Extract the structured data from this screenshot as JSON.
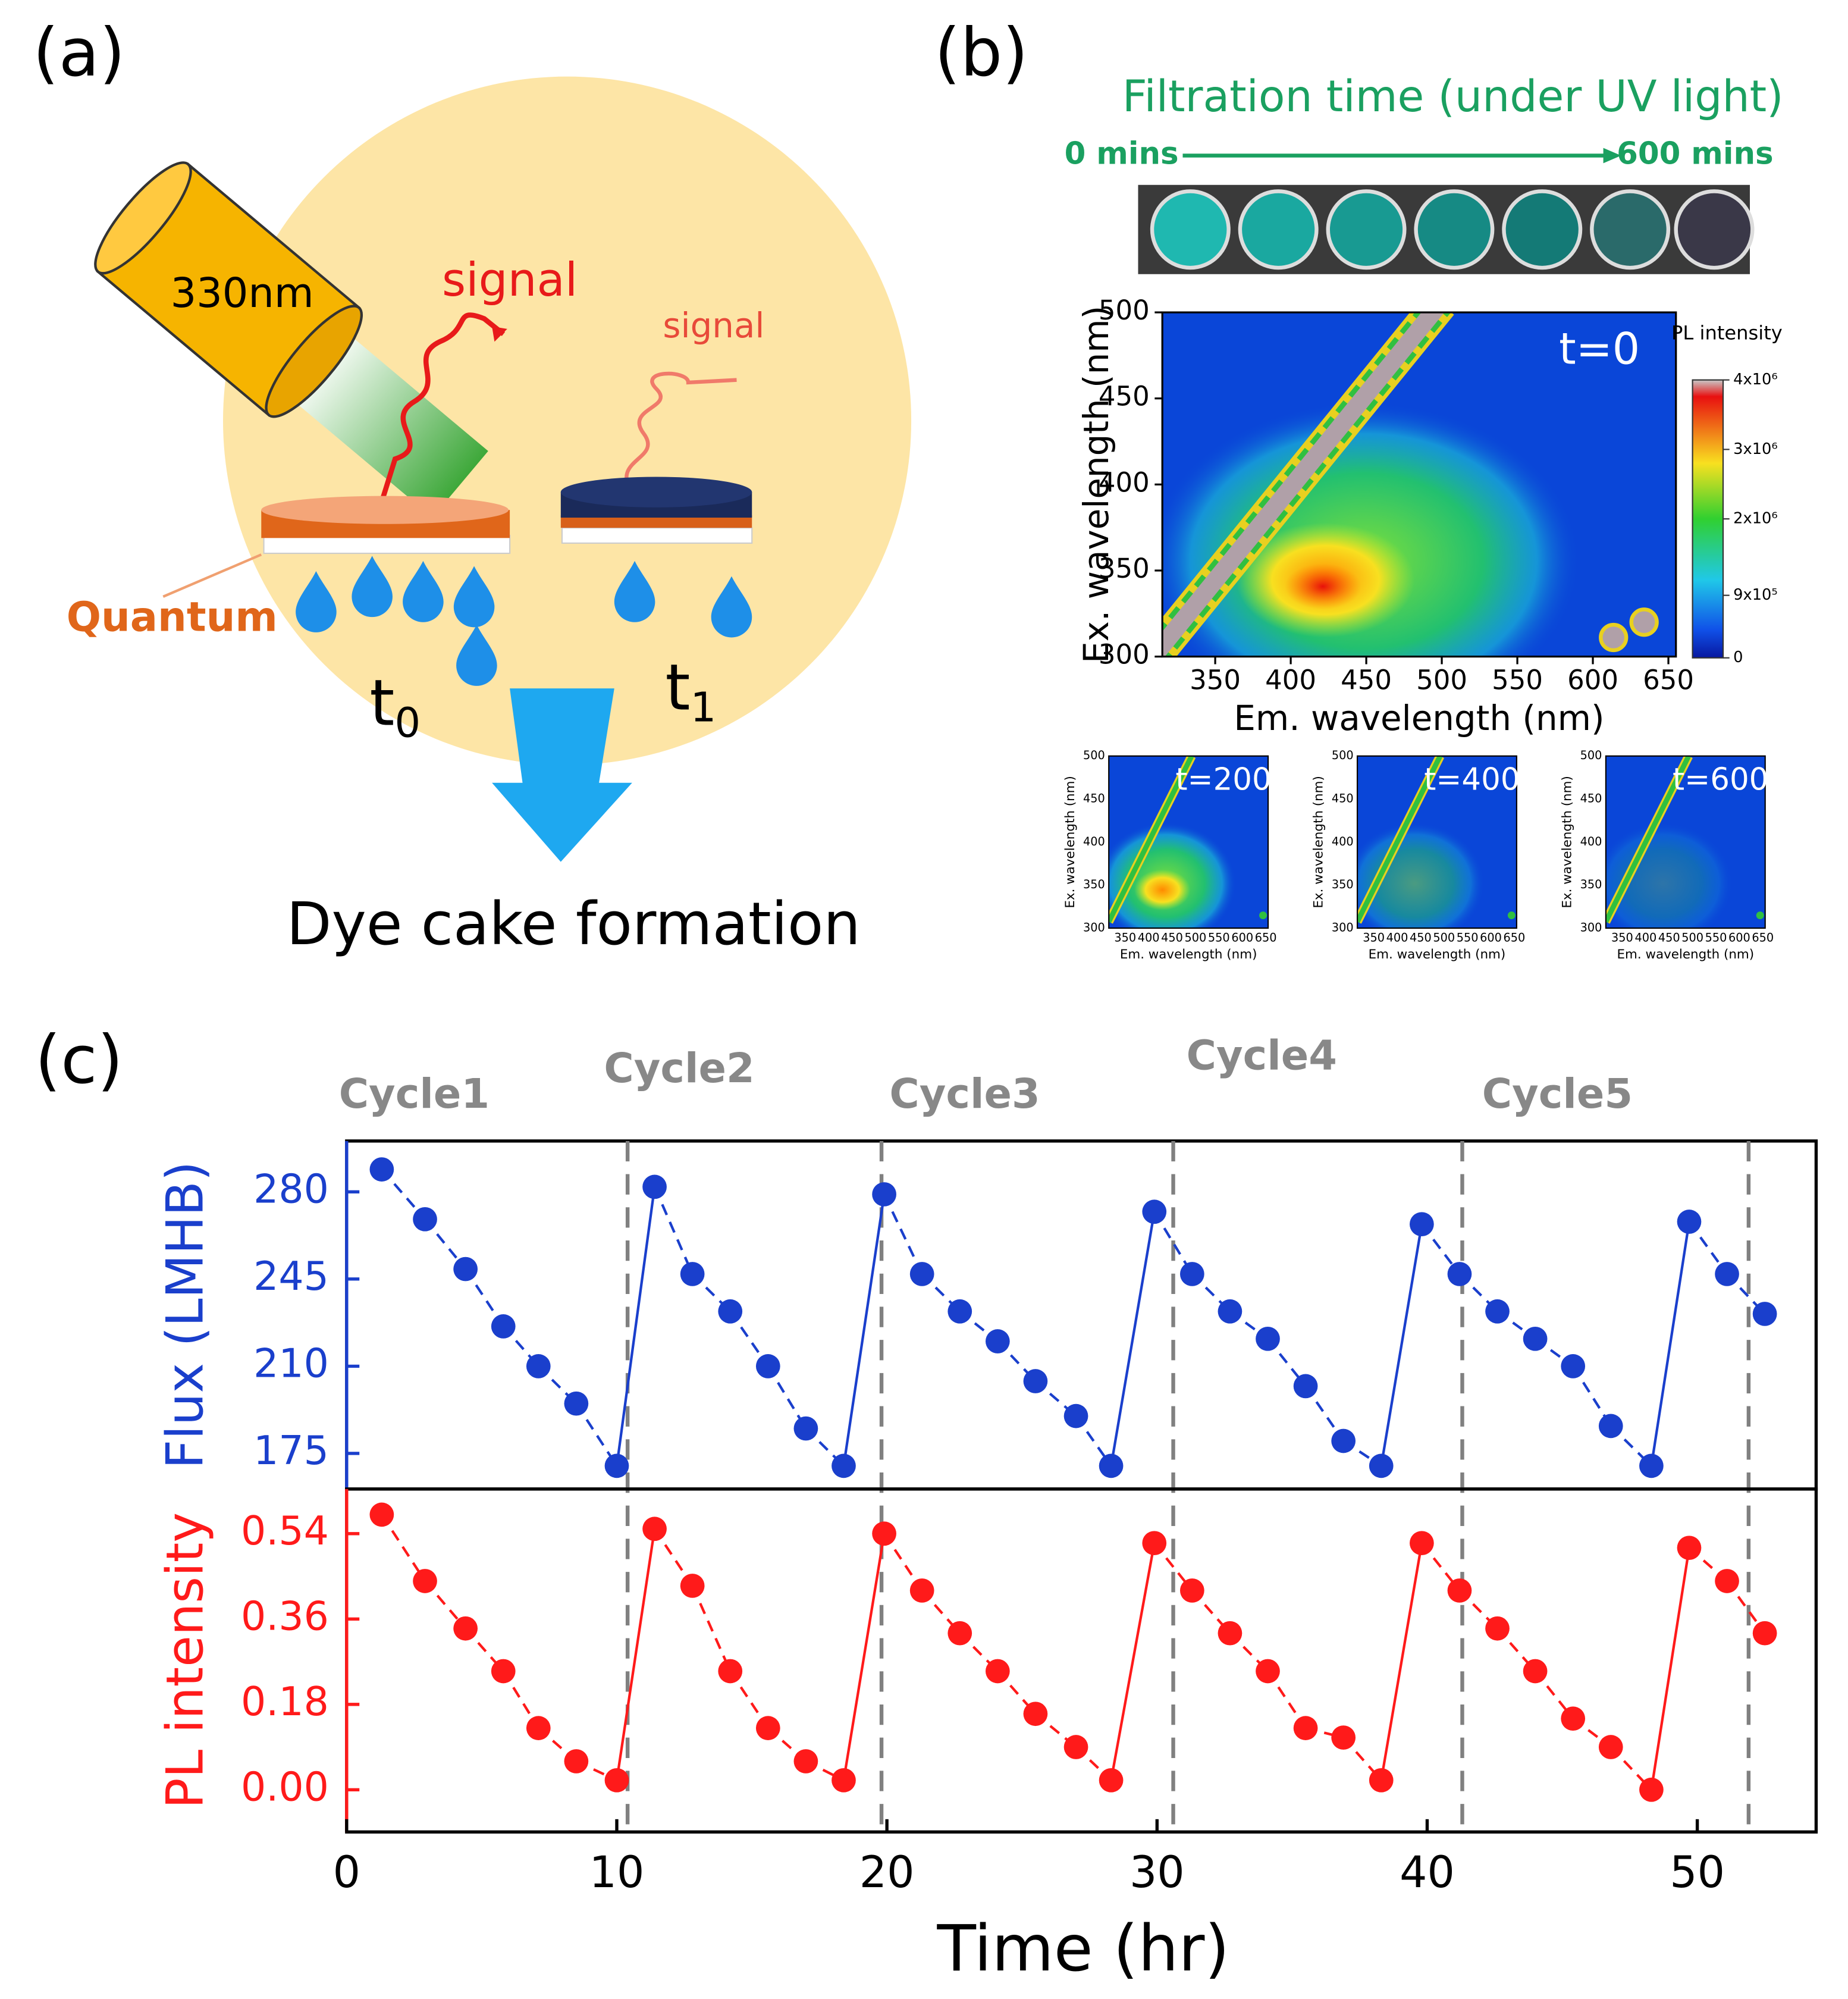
{
  "panel_a": {
    "label": "(a)",
    "laser": "330nm",
    "signal_strong": "signal",
    "signal_weak": "signal",
    "material": "Quantum",
    "t0": {
      "base": "t",
      "sub": "0"
    },
    "t1": {
      "base": "t",
      "sub": "1"
    },
    "caption": "Dye cake formation"
  },
  "panel_b": {
    "label": "(b)",
    "title": "Filtration time (under UV light)",
    "start": "0 mins",
    "end": "600 mins"
  },
  "panel_c": {
    "label": "(c)"
  },
  "chart_data": [
    {
      "type": "heatmap",
      "title": "t=0",
      "xlabel": "Em. wavelength (nm)",
      "ylabel": "Ex. wavelength (nm)",
      "xlim": [
        315,
        655
      ],
      "ylim": [
        300,
        500
      ],
      "xticks": [
        350,
        400,
        450,
        500,
        550,
        600,
        650
      ],
      "yticks": [
        300,
        350,
        400,
        450,
        500
      ],
      "colorbar": {
        "title": "PL intensity",
        "lim": [
          0,
          4000000
        ],
        "ticks": [
          0,
          {
            "value": 900000,
            "label": "9x10⁵"
          },
          {
            "value": 2000000,
            "label": "2x10⁶"
          },
          {
            "value": 3000000,
            "label": "3x10⁶"
          },
          {
            "value": 4000000,
            "label": "4x10⁶"
          }
        ]
      },
      "insets": [
        {
          "title": "t=200"
        },
        {
          "title": "t=400"
        },
        {
          "title": "t=600"
        }
      ]
    },
    {
      "type": "line",
      "ylabel": "Flux (LMHB)",
      "color": "#1a3fcc",
      "x": [
        1.3,
        2.9,
        4.4,
        5.8,
        7.1,
        8.5,
        10.0,
        11.4,
        12.8,
        14.2,
        15.6,
        17.0,
        18.4,
        19.9,
        21.3,
        22.7,
        24.1,
        25.5,
        27.0,
        28.3,
        29.9,
        31.3,
        32.7,
        34.1,
        35.5,
        36.9,
        38.3,
        39.8,
        41.2,
        42.6,
        44.0,
        45.4,
        46.8,
        48.3,
        49.7,
        51.1,
        52.5
      ],
      "values": [
        289,
        269,
        249,
        226,
        210,
        195,
        170,
        282,
        247,
        232,
        210,
        185,
        170,
        279,
        247,
        232,
        220,
        204,
        190,
        170,
        272,
        247,
        232,
        221,
        202,
        180,
        170,
        267,
        247,
        232,
        221,
        210,
        186,
        170,
        268,
        247,
        231
      ],
      "xlim": [
        0,
        54.4
      ],
      "ylim": [
        160.7,
        300.4
      ],
      "yticks": [
        175,
        210,
        245,
        280
      ],
      "vlines": [
        10.4,
        19.8,
        30.6,
        41.3,
        51.9
      ],
      "annotations": [
        "Cycle1",
        "Cycle2",
        "Cycle3",
        "Cycle4",
        "Cycle5"
      ]
    },
    {
      "type": "line",
      "ylabel": "PL intensity",
      "xlabel": "Time (hr)",
      "color": "#ff1a1a",
      "x": [
        1.3,
        2.9,
        4.4,
        5.8,
        7.1,
        8.5,
        10.0,
        11.4,
        12.8,
        14.2,
        15.6,
        17.0,
        18.4,
        19.9,
        21.3,
        22.7,
        24.1,
        25.5,
        27.0,
        28.3,
        29.9,
        31.3,
        32.7,
        34.1,
        35.5,
        36.9,
        38.3,
        39.8,
        41.2,
        42.6,
        44.0,
        45.4,
        46.8,
        48.3,
        49.7,
        51.1,
        52.5
      ],
      "values": [
        0.58,
        0.44,
        0.34,
        0.25,
        0.13,
        0.06,
        0.02,
        0.55,
        0.43,
        0.25,
        0.13,
        0.06,
        0.02,
        0.54,
        0.42,
        0.33,
        0.25,
        0.16,
        0.09,
        0.02,
        0.52,
        0.42,
        0.33,
        0.25,
        0.13,
        0.11,
        0.02,
        0.52,
        0.42,
        0.34,
        0.25,
        0.15,
        0.09,
        0,
        0.51,
        0.44,
        0.33
      ],
      "xlim": [
        0,
        54.4
      ],
      "ylim": [
        -0.089,
        0.634
      ],
      "xticks": [
        0,
        10,
        20,
        30,
        40,
        50
      ],
      "yticks": [
        {
          "value": 0,
          "label": "0.00"
        },
        0.18,
        0.36,
        0.54
      ]
    }
  ]
}
